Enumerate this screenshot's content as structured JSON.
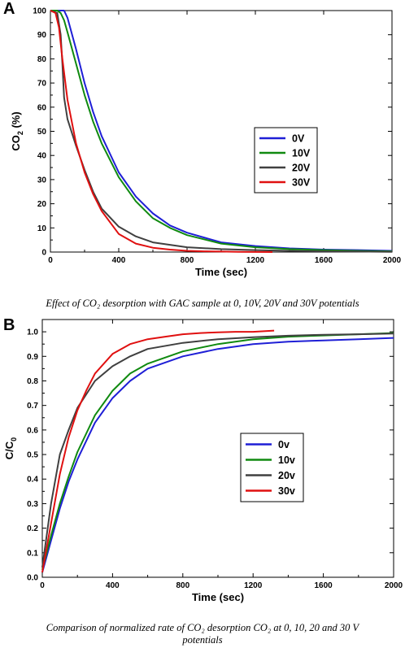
{
  "panel_a": {
    "letter": "A",
    "caption_line1": "Effect of CO₂ desorption with GAC sample at 0, 10V, 20V and 30V potentials"
  },
  "panel_b": {
    "letter": "B",
    "caption_line1": "Comparison of normalized rate of CO₂ desorption CO₂ at 0, 10, 20 and 30 V",
    "caption_line2": "potentials"
  },
  "chart_data": [
    {
      "type": "line",
      "xlabel": "Time (sec)",
      "ylabel_main": "CO",
      "ylabel_sub": "2",
      "ylabel_tail": " (%)",
      "xlim": [
        0,
        2000
      ],
      "ylim": [
        0,
        100
      ],
      "x_ticks": [
        "0",
        "400",
        "800",
        "1200",
        "1600",
        "2000"
      ],
      "y_ticks": [
        "0",
        "10",
        "20",
        "30",
        "40",
        "50",
        "60",
        "70",
        "80",
        "90",
        "100"
      ],
      "legend_position": "right-middle",
      "grid": false,
      "series": [
        {
          "name": "0V",
          "color": "#1f1fd6",
          "x": [
            0,
            40,
            80,
            100,
            150,
            200,
            250,
            300,
            400,
            500,
            600,
            700,
            800,
            1000,
            1200,
            1400,
            1600,
            1800,
            2000
          ],
          "y": [
            100,
            100,
            100,
            97,
            84,
            70,
            58,
            48,
            33,
            23,
            16,
            11,
            8,
            4,
            2.5,
            1.5,
            1,
            0.8,
            0.5
          ]
        },
        {
          "name": "10V",
          "color": "#108a10",
          "x": [
            0,
            40,
            60,
            80,
            100,
            150,
            200,
            250,
            300,
            400,
            500,
            600,
            700,
            800,
            1000,
            1200,
            1400,
            1600,
            1800,
            2000
          ],
          "y": [
            100,
            100,
            99,
            96,
            91,
            78,
            65,
            54,
            45,
            31,
            21,
            14,
            10,
            7,
            3.5,
            2,
            1.2,
            0.8,
            0.5,
            0.3
          ]
        },
        {
          "name": "20V",
          "color": "#404040",
          "x": [
            0,
            40,
            60,
            70,
            80,
            100,
            150,
            200,
            250,
            300,
            400,
            500,
            600,
            800,
            1000,
            1200,
            1400,
            1600,
            1800,
            2000
          ],
          "y": [
            100,
            99,
            90,
            78,
            64,
            55,
            44,
            34,
            25,
            18,
            10.5,
            6.5,
            4,
            2,
            1.2,
            0.8,
            0.5,
            0.3,
            0.2,
            0.1
          ]
        },
        {
          "name": "30V",
          "color": "#e01010",
          "x": [
            0,
            30,
            50,
            70,
            100,
            150,
            200,
            250,
            300,
            400,
            500,
            600,
            700,
            800,
            900,
            1000,
            1100,
            1200,
            1300
          ],
          "y": [
            100,
            99,
            93,
            80,
            63,
            45,
            33,
            24,
            17,
            7.5,
            3.5,
            1.8,
            1,
            0.5,
            0.3,
            0.2,
            0.1,
            0.05,
            0
          ]
        }
      ]
    },
    {
      "type": "line",
      "xlabel": "Time (sec)",
      "ylabel_main": "C/C",
      "ylabel_sub": "0",
      "ylabel_tail": "",
      "xlim": [
        0,
        2000
      ],
      "ylim": [
        0.0,
        1.05
      ],
      "x_ticks": [
        "0",
        "400",
        "800",
        "1200",
        "1600",
        "2000"
      ],
      "y_ticks": [
        "0.0",
        "0.1",
        "0.2",
        "0.3",
        "0.4",
        "0.5",
        "0.6",
        "0.7",
        "0.8",
        "0.9",
        "1.0"
      ],
      "legend_position": "center",
      "grid": false,
      "series": [
        {
          "name": "0v",
          "color": "#1f1fd6",
          "x": [
            0,
            50,
            100,
            150,
            200,
            300,
            400,
            500,
            600,
            800,
            1000,
            1200,
            1400,
            1600,
            1800,
            2000
          ],
          "y": [
            0.02,
            0.15,
            0.28,
            0.39,
            0.48,
            0.63,
            0.73,
            0.8,
            0.85,
            0.9,
            0.93,
            0.95,
            0.96,
            0.965,
            0.97,
            0.975
          ]
        },
        {
          "name": "10v",
          "color": "#108a10",
          "x": [
            0,
            50,
            100,
            150,
            200,
            300,
            400,
            500,
            600,
            800,
            1000,
            1200,
            1400,
            1600,
            1800,
            2000
          ],
          "y": [
            0.03,
            0.17,
            0.3,
            0.41,
            0.51,
            0.66,
            0.76,
            0.83,
            0.87,
            0.92,
            0.95,
            0.97,
            0.98,
            0.985,
            0.99,
            0.995
          ]
        },
        {
          "name": "20v",
          "color": "#404040",
          "x": [
            0,
            50,
            100,
            150,
            200,
            300,
            400,
            500,
            600,
            800,
            1000,
            1200,
            1400,
            1600,
            1800,
            2000
          ],
          "y": [
            0.04,
            0.3,
            0.5,
            0.6,
            0.69,
            0.8,
            0.86,
            0.9,
            0.93,
            0.955,
            0.97,
            0.978,
            0.984,
            0.988,
            0.99,
            0.993
          ]
        },
        {
          "name": "30v",
          "color": "#e01010",
          "x": [
            0,
            50,
            100,
            150,
            200,
            250,
            300,
            400,
            500,
            600,
            700,
            800,
            900,
            1000,
            1100,
            1200,
            1320
          ],
          "y": [
            0.02,
            0.22,
            0.42,
            0.57,
            0.68,
            0.76,
            0.83,
            0.91,
            0.95,
            0.97,
            0.98,
            0.99,
            0.995,
            0.998,
            1.0,
            1.0,
            1.005
          ]
        }
      ]
    }
  ]
}
